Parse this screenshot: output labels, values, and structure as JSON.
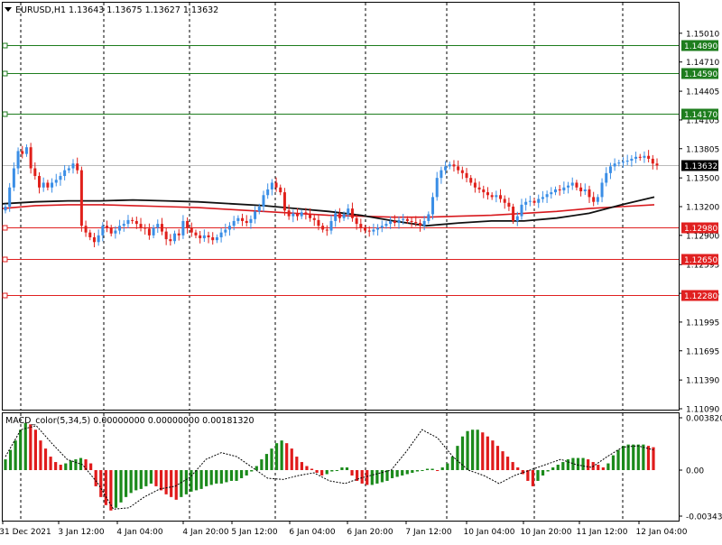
{
  "header": {
    "symbol": "EURUSD,H1",
    "ohlc": "1.13643 1.13675 1.13627 1.13632"
  },
  "macd_header": "MACD_color(5,34,5) 0.00000000 0.00000000 0.00181320",
  "colors": {
    "bull": "#3a8ee6",
    "bear": "#e0201b",
    "ma_black": "#111111",
    "ma_red": "#d8191e",
    "resistance": "#1e7d1e",
    "support": "#e02020",
    "hist_up": "#1b8a1b",
    "hist_down": "#e01b1b",
    "grid": "#000000",
    "current_price_bg": "#000000"
  },
  "chart_data": [
    {
      "type": "candlestick",
      "title": "EURUSD,H1",
      "ylim": [
        1.1109,
        1.1515
      ],
      "y_ticks": [
        "1.15010",
        "1.14710",
        "1.14405",
        "1.14105",
        "1.13805",
        "1.13500",
        "1.13200",
        "1.12900",
        "1.12595",
        "1.12295",
        "1.11995",
        "1.11695",
        "1.11390",
        "1.11090"
      ],
      "x_ticks": [
        "31 Dec 2021",
        "3 Jan 12:00",
        "4 Jan 04:00",
        "4 Jan 20:00",
        "5 Jan 12:00",
        "6 Jan 04:00",
        "6 Jan 20:00",
        "7 Jan 12:00",
        "10 Jan 04:00",
        "10 Jan 20:00",
        "11 Jan 12:00",
        "12 Jan 04:00"
      ],
      "current_price": "1.13632",
      "levels": [
        {
          "price": 1.1489,
          "label": "1.14890",
          "kind": "resistance"
        },
        {
          "price": 1.1459,
          "label": "1.14590",
          "kind": "resistance"
        },
        {
          "price": 1.1417,
          "label": "1.14170",
          "kind": "resistance"
        },
        {
          "price": 1.1298,
          "label": "1.12980",
          "kind": "support"
        },
        {
          "price": 1.1265,
          "label": "1.12650",
          "kind": "support"
        },
        {
          "price": 1.1228,
          "label": "1.12280",
          "kind": "support"
        }
      ],
      "series": [
        {
          "values": [
            1.132,
            1.134,
            1.136,
            1.1378,
            1.1375,
            1.1382,
            1.136,
            1.1352,
            1.134,
            1.1345,
            1.134,
            1.1345,
            1.1348,
            1.1352,
            1.1358,
            1.136,
            1.1365,
            1.1358,
            1.13,
            1.1293,
            1.1288,
            1.1283,
            1.129,
            1.13,
            1.1298,
            1.1292,
            1.1295,
            1.13,
            1.1302,
            1.1306,
            1.1305,
            1.1302,
            1.1298,
            1.1297,
            1.129,
            1.1298,
            1.1302,
            1.1294,
            1.1286,
            1.1284,
            1.1292,
            1.129,
            1.1305,
            1.1298,
            1.1293,
            1.129,
            1.1287,
            1.129,
            1.1288,
            1.1285,
            1.1288,
            1.1293,
            1.1296,
            1.13,
            1.1305,
            1.1308,
            1.1305,
            1.1303,
            1.1307,
            1.1315,
            1.132,
            1.1332,
            1.1338,
            1.1345,
            1.134,
            1.1335,
            1.1316,
            1.131,
            1.1313,
            1.131,
            1.1314,
            1.1312,
            1.1308,
            1.1306,
            1.13,
            1.1296,
            1.1295,
            1.1305,
            1.1313,
            1.1308,
            1.1312,
            1.1318,
            1.1308,
            1.1302,
            1.1298,
            1.1295,
            1.1294,
            1.1296,
            1.1298,
            1.13,
            1.1302,
            1.1305,
            1.1303,
            1.1306,
            1.1307,
            1.1305,
            1.1304,
            1.1303,
            1.13,
            1.1305,
            1.1312,
            1.133,
            1.135,
            1.1358,
            1.1362,
            1.1364,
            1.1362,
            1.1358,
            1.1355,
            1.135,
            1.1345,
            1.134,
            1.1338,
            1.1335,
            1.1332,
            1.133,
            1.1332,
            1.1328,
            1.1324,
            1.132,
            1.1305,
            1.131,
            1.1322,
            1.1325,
            1.1326,
            1.1324,
            1.1328,
            1.133,
            1.1333,
            1.1335,
            1.1338,
            1.1337,
            1.134,
            1.1342,
            1.1345,
            1.134,
            1.1336,
            1.1338,
            1.133,
            1.1325,
            1.133,
            1.1345,
            1.1355,
            1.1362,
            1.1365,
            1.1366,
            1.1367,
            1.1368,
            1.137,
            1.1372,
            1.1371,
            1.1373,
            1.137,
            1.1365,
            1.1363
          ]
        },
        {
          "name": "MA black",
          "values": [
            1.1323,
            1.1325,
            1.1326,
            1.1326,
            1.1327,
            1.1326,
            1.1325,
            1.1323,
            1.1321,
            1.1318,
            1.1315,
            1.1311,
            1.1305,
            1.13,
            1.1303,
            1.1305,
            1.1305,
            1.1308,
            1.1313,
            1.1322,
            1.133
          ]
        },
        {
          "name": "MA red",
          "values": [
            1.1318,
            1.1321,
            1.1322,
            1.1322,
            1.1321,
            1.132,
            1.1319,
            1.1317,
            1.1315,
            1.1313,
            1.1311,
            1.131,
            1.1309,
            1.1309,
            1.131,
            1.1311,
            1.1313,
            1.1315,
            1.1318,
            1.132,
            1.1322
          ]
        }
      ]
    },
    {
      "type": "bar",
      "title": "MACD_color(5,34,5)",
      "ylim": [
        -0.003438,
        0.00382
      ],
      "y_ticks": [
        "0.0038205",
        "0.00",
        "-0.003438"
      ],
      "series": [
        {
          "name": "histogram",
          "values": [
            0.0008,
            0.0015,
            0.0022,
            0.003,
            0.0035,
            0.0034,
            0.003,
            0.0022,
            0.0016,
            0.001,
            0.0006,
            0.0004,
            0.0005,
            0.0007,
            0.0008,
            0.0009,
            0.0008,
            0.0005,
            -0.0012,
            -0.002,
            -0.0026,
            -0.003,
            -0.0028,
            -0.0024,
            -0.002,
            -0.0017,
            -0.0015,
            -0.0014,
            -0.0012,
            -0.001,
            -0.0012,
            -0.0015,
            -0.0018,
            -0.002,
            -0.0022,
            -0.002,
            -0.0018,
            -0.0016,
            -0.0015,
            -0.0014,
            -0.0012,
            -0.0011,
            -0.001,
            -0.001,
            -0.0009,
            -0.0008,
            -0.0008,
            -0.0006,
            -0.0004,
            -0.0001,
            0.0003,
            0.0008,
            0.0012,
            0.0016,
            0.002,
            0.0022,
            0.002,
            0.0016,
            0.001,
            0.0006,
            0.0003,
            0.0001,
            -0.0002,
            -0.0004,
            -0.0003,
            -0.0001,
            0.0,
            0.0002,
            0.0002,
            -0.0004,
            -0.0008,
            -0.001,
            -0.0011,
            -0.0011,
            -0.001,
            -0.0009,
            -0.0008,
            -0.0006,
            -0.0005,
            -0.0004,
            -0.0003,
            -0.0002,
            -0.0001,
            0.0,
            0.0001,
            0.0001,
            0.0,
            0.0002,
            0.0005,
            0.001,
            0.0018,
            0.0025,
            0.0029,
            0.003,
            0.003,
            0.0028,
            0.0025,
            0.0022,
            0.0018,
            0.0014,
            0.001,
            0.0006,
            0.0002,
            -0.0003,
            -0.0008,
            -0.0012,
            -0.0008,
            -0.0004,
            -0.0001,
            0.0002,
            0.0004,
            0.0006,
            0.0008,
            0.0009,
            0.0009,
            0.0009,
            0.0008,
            0.0006,
            0.0004,
            0.0002,
            0.0005,
            0.0011,
            0.0015,
            0.0018,
            0.0019,
            0.0019,
            0.0019,
            0.0019,
            0.0018,
            0.0017
          ]
        },
        {
          "name": "signal",
          "values": [
            0.001,
            0.003,
            0.0033,
            0.002,
            0.0008,
            0.0004,
            -0.001,
            -0.0029,
            -0.0028,
            -0.002,
            -0.0014,
            -0.0012,
            -0.0005,
            0.0008,
            0.0013,
            0.001,
            0.0002,
            -0.0006,
            -0.0007,
            -0.0004,
            -0.0002,
            -0.0008,
            -0.001,
            -0.0006,
            -0.0003,
            0.0,
            0.0014,
            0.003,
            0.0024,
            0.001,
            0.0,
            -0.0004,
            -0.001,
            -0.0004,
            0.0,
            0.0004,
            0.0008,
            0.0004,
            0.0002,
            0.001,
            0.0017,
            0.0018,
            0.0015
          ]
        }
      ]
    }
  ]
}
